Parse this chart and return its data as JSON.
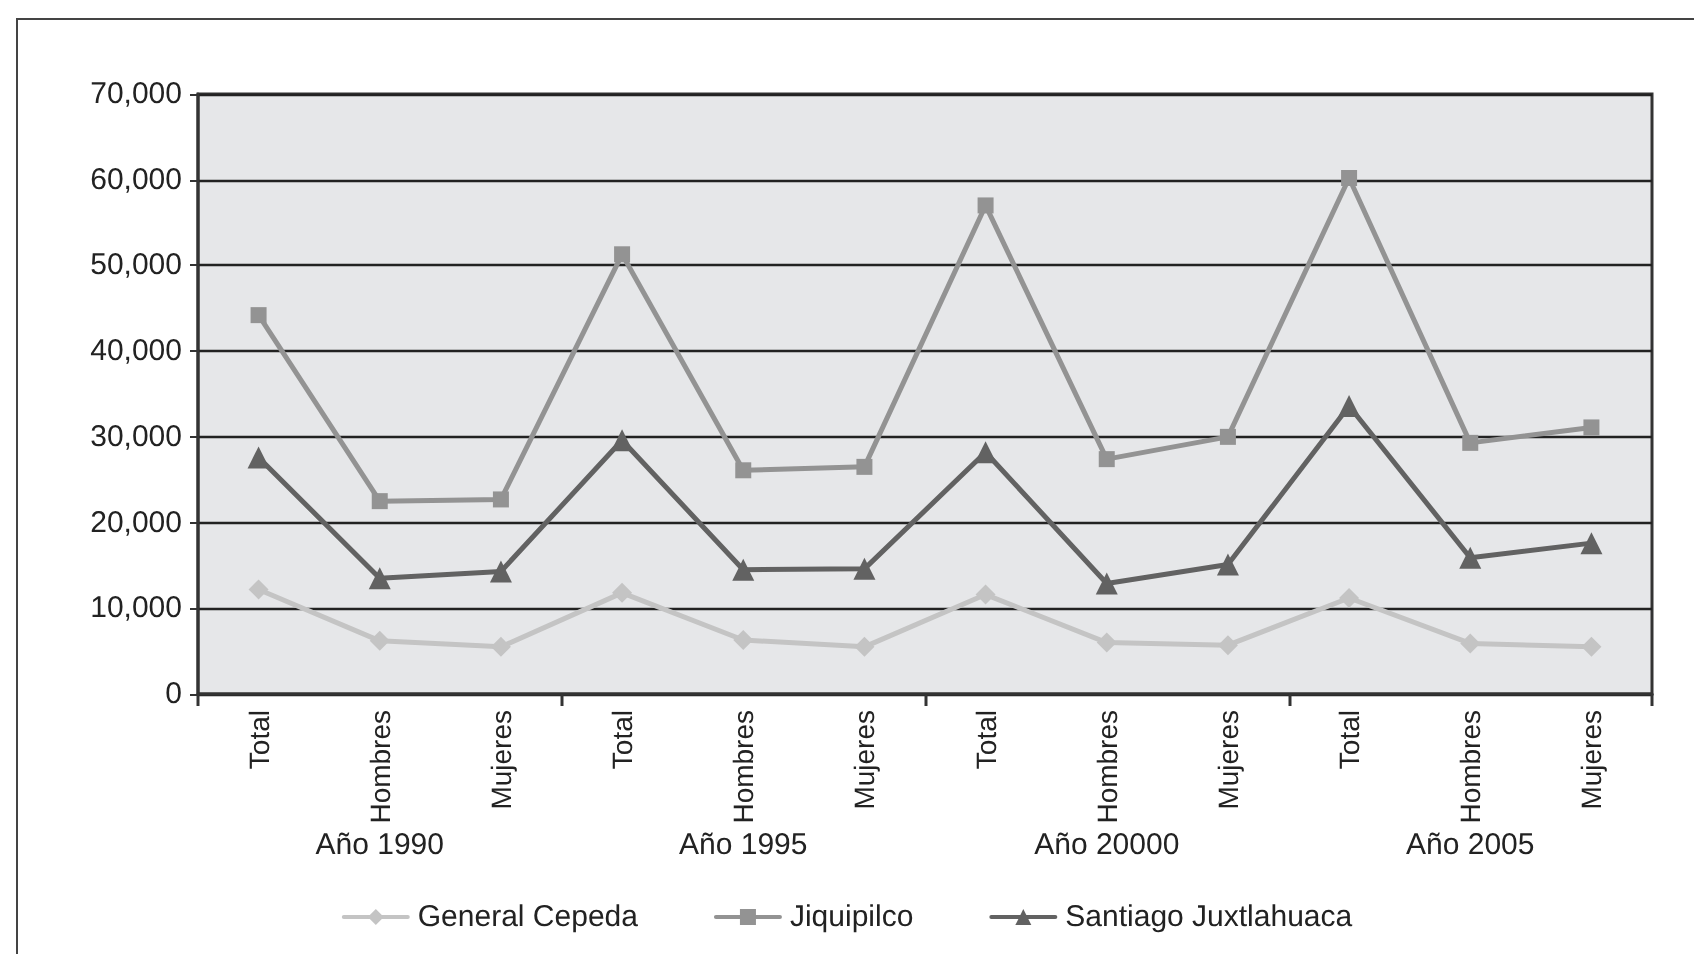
{
  "chart_data": {
    "type": "line",
    "categories": [
      "Total",
      "Hombres",
      "Mujeres",
      "Total",
      "Hombres",
      "Mujeres",
      "Total",
      "Hombres",
      "Mujeres",
      "Total",
      "Hombres",
      "Mujeres"
    ],
    "annotations": [
      "Año 1990",
      "Año 1995",
      "Año 20000",
      "Año 2005"
    ],
    "series": [
      {
        "name": "General Cepeda",
        "color": "#c4c4c4",
        "marker": "diamond",
        "values": [
          12200,
          6200,
          5500,
          11800,
          6300,
          5500,
          11600,
          6000,
          5700,
          11200,
          5900,
          5500
        ]
      },
      {
        "name": "Jiquipilco",
        "color": "#939393",
        "marker": "square",
        "values": [
          44200,
          22500,
          22700,
          51300,
          26100,
          26500,
          57000,
          27400,
          30000,
          60200,
          29300,
          31100
        ]
      },
      {
        "name": "Santiago Juxtlahuaca",
        "color": "#626262",
        "marker": "triangle",
        "values": [
          27600,
          13500,
          14300,
          29600,
          14500,
          14600,
          28200,
          12900,
          15100,
          33600,
          15900,
          17600
        ]
      }
    ],
    "ylim": [
      0,
      70000
    ],
    "yticks": [
      {
        "value": 0,
        "label": "0"
      },
      {
        "value": 10000,
        "label": "10,000"
      },
      {
        "value": 20000,
        "label": "20,000"
      },
      {
        "value": 30000,
        "label": "30,000"
      },
      {
        "value": 40000,
        "label": "40,000"
      },
      {
        "value": 50000,
        "label": "50,000"
      },
      {
        "value": 60000,
        "label": "60,000"
      },
      {
        "value": 70000,
        "label": "70,000"
      }
    ],
    "grid": "y",
    "legend": "bottom",
    "line_style": "solid"
  }
}
